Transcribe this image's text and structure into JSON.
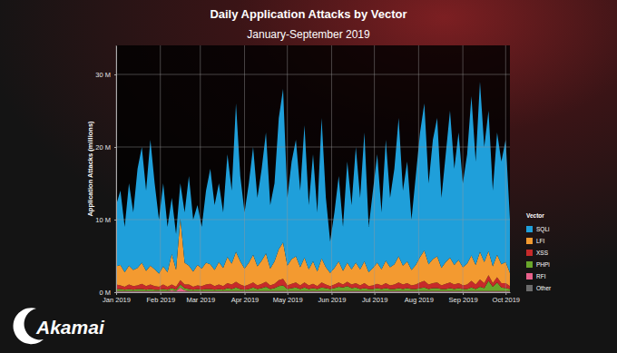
{
  "chart_data": {
    "type": "area",
    "title": "Daily Application Attacks by Vector",
    "subtitle": "January-September 2019",
    "y_label": "Application Attacks (millions)",
    "legend_title": "Vector",
    "annotations": [
      "Akamai"
    ],
    "stacked": true,
    "grid": true,
    "legend": "right",
    "x": [
      0,
      3,
      6,
      9,
      12,
      15,
      18,
      21,
      24,
      27,
      30,
      33,
      36,
      39,
      42,
      45,
      48,
      51,
      54,
      57,
      60,
      63,
      66,
      69,
      72,
      75,
      78,
      81,
      84,
      87,
      90,
      93,
      96,
      99,
      102,
      105,
      108,
      111,
      114,
      117,
      120,
      123,
      126,
      129,
      132,
      135,
      138,
      141,
      144,
      147,
      150,
      153,
      156,
      159,
      162,
      165,
      168,
      171,
      174,
      177,
      180,
      183,
      186,
      189,
      192,
      195,
      198,
      201,
      204,
      207,
      210,
      213,
      216,
      219,
      222,
      225,
      228,
      231,
      234,
      237,
      240,
      243,
      246,
      249,
      252,
      255,
      258,
      261,
      264,
      267,
      270,
      273,
      276
    ],
    "xlim": [
      0,
      276
    ],
    "xticks": [
      {
        "value": 0,
        "label": "Jan 2019"
      },
      {
        "value": 31,
        "label": "Feb 2019"
      },
      {
        "value": 59,
        "label": "Mar 2019"
      },
      {
        "value": 90,
        "label": "Apr 2019"
      },
      {
        "value": 120,
        "label": "May 2019"
      },
      {
        "value": 151,
        "label": "Jun 2019"
      },
      {
        "value": 181,
        "label": "Jul 2019"
      },
      {
        "value": 212,
        "label": "Aug 2019"
      },
      {
        "value": 243,
        "label": "Sep 2019"
      },
      {
        "value": 273,
        "label": "Oct 2019"
      }
    ],
    "ylim": [
      0,
      34
    ],
    "yticks": [
      {
        "value": 0,
        "label": "0 M"
      },
      {
        "value": 10,
        "label": "10 M"
      },
      {
        "value": 20,
        "label": "20 M"
      },
      {
        "value": 30,
        "label": "30 M"
      }
    ],
    "series": [
      {
        "name": "SQLi",
        "color": "#1f9fda",
        "values": [
          8.45,
          10.25,
          6.25,
          11.35,
          7.95,
          13.65,
          15.95,
          11.05,
          17.35,
          11.85,
          7.45,
          11.45,
          6.25,
          7.75,
          4.95,
          4.85,
          6.95,
          12.35,
          7.15,
          8.25,
          5.75,
          9.95,
          13.15,
          8.95,
          10.85,
          7.65,
          14.15,
          10.05,
          20.45,
          11.75,
          7.75,
          10.95,
          14.85,
          9.45,
          12.65,
          16.65,
          8.75,
          10.75,
          18.05,
          21.15,
          9.35,
          13.45,
          16.05,
          10.55,
          18.25,
          8.85,
          14.75,
          8.15,
          19.35,
          9.55,
          4.35,
          7.65,
          11.75,
          6.05,
          13.95,
          8.85,
          15.95,
          9.85,
          17.75,
          6.25,
          10.65,
          14.95,
          7.85,
          16.65,
          9.55,
          13.15,
          19.05,
          10.35,
          13.75,
          6.95,
          12.25,
          17.15,
          20.25,
          11.15,
          16.45,
          19.05,
          9.65,
          14.85,
          20.25,
          13.25,
          17.55,
          11.55,
          15.05,
          21.95,
          14.25,
          23.45,
          15.85,
          19.35,
          10.45,
          16.85,
          14.15,
          16.85,
          7.35
        ]
      },
      {
        "name": "LFI",
        "color": "#f39a30",
        "values": [
          2.5,
          2.8,
          2.0,
          2.6,
          2.2,
          2.4,
          2.9,
          2.1,
          2.6,
          2.3,
          1.8,
          2.5,
          2.0,
          4.2,
          2.3,
          8.5,
          3.0,
          2.6,
          2.1,
          2.8,
          2.4,
          3.0,
          2.7,
          2.2,
          3.1,
          2.5,
          3.6,
          2.9,
          4.1,
          3.2,
          2.4,
          3.0,
          3.8,
          2.6,
          3.2,
          3.9,
          2.3,
          3.1,
          4.3,
          5.0,
          2.7,
          3.4,
          3.6,
          2.5,
          3.4,
          2.2,
          3.1,
          2.0,
          3.3,
          2.4,
          1.8,
          2.3,
          2.9,
          1.9,
          2.6,
          2.1,
          2.8,
          2.2,
          3.0,
          1.9,
          2.4,
          2.9,
          2.2,
          3.1,
          2.5,
          2.8,
          3.6,
          2.6,
          3.0,
          2.1,
          2.7,
          3.5,
          4.2,
          2.8,
          3.3,
          3.6,
          2.4,
          3.0,
          3.4,
          2.7,
          3.2,
          2.5,
          2.9,
          3.5,
          2.7,
          3.8,
          2.9,
          3.3,
          2.3,
          3.1,
          2.6,
          2.9,
          1.8
        ]
      },
      {
        "name": "XSS",
        "color": "#c62a2a",
        "values": [
          0.6,
          0.5,
          0.4,
          0.6,
          0.5,
          0.5,
          0.7,
          0.5,
          0.6,
          0.5,
          0.4,
          0.6,
          0.4,
          0.5,
          0.4,
          0.6,
          0.5,
          0.6,
          0.4,
          0.5,
          0.5,
          0.6,
          0.7,
          0.5,
          0.6,
          0.5,
          0.7,
          0.6,
          0.8,
          0.6,
          0.5,
          0.6,
          0.7,
          0.5,
          0.6,
          0.7,
          0.5,
          0.6,
          0.8,
          0.9,
          0.5,
          0.6,
          0.7,
          0.5,
          0.7,
          0.5,
          0.6,
          0.4,
          0.7,
          0.5,
          0.4,
          0.5,
          0.6,
          0.4,
          0.6,
          0.5,
          0.6,
          0.5,
          0.7,
          0.4,
          0.5,
          0.6,
          0.5,
          0.7,
          0.5,
          0.6,
          0.8,
          0.6,
          0.7,
          0.5,
          0.6,
          0.8,
          0.9,
          0.6,
          0.7,
          0.8,
          0.5,
          0.7,
          0.8,
          0.6,
          0.7,
          0.5,
          0.6,
          0.9,
          0.6,
          1.0,
          0.7,
          0.8,
          0.5,
          0.7,
          0.6,
          0.7,
          0.4
        ]
      },
      {
        "name": "PHPi",
        "color": "#69a62b",
        "values": [
          0.3,
          0.3,
          0.2,
          0.3,
          0.2,
          0.3,
          0.3,
          0.2,
          0.3,
          0.2,
          0.2,
          0.3,
          0.2,
          0.3,
          0.2,
          0.4,
          0.3,
          0.3,
          0.2,
          0.3,
          0.2,
          0.3,
          0.3,
          0.2,
          0.3,
          0.2,
          0.4,
          0.3,
          0.5,
          0.3,
          0.2,
          0.3,
          0.5,
          0.3,
          0.4,
          0.6,
          0.3,
          0.4,
          0.7,
          0.8,
          0.3,
          0.4,
          0.5,
          0.3,
          0.5,
          0.3,
          0.4,
          0.3,
          0.5,
          0.4,
          0.3,
          0.4,
          0.6,
          0.5,
          0.7,
          0.4,
          0.5,
          0.3,
          0.4,
          0.3,
          0.3,
          0.4,
          0.3,
          0.4,
          0.3,
          0.3,
          0.4,
          0.3,
          0.4,
          0.3,
          0.3,
          0.4,
          0.5,
          0.3,
          0.4,
          0.4,
          0.3,
          0.3,
          0.4,
          0.3,
          0.4,
          0.3,
          0.3,
          0.5,
          0.3,
          0.6,
          0.4,
          1.4,
          0.6,
          1.2,
          0.5,
          0.4,
          0.3
        ]
      },
      {
        "name": "RFI",
        "color": "#e8608a",
        "values": [
          0.1,
          0.1,
          0.1,
          0.1,
          0.1,
          0.1,
          0.1,
          0.1,
          0.1,
          0.1,
          0.1,
          0.1,
          0.1,
          0.2,
          0.1,
          0.6,
          0.2,
          0.1,
          0.1,
          0.1,
          0.1,
          0.1,
          0.1,
          0.1,
          0.1,
          0.1,
          0.1,
          0.1,
          0.1,
          0.1,
          0.1,
          0.1,
          0.1,
          0.1,
          0.1,
          0.1,
          0.1,
          0.1,
          0.1,
          0.1,
          0.1,
          0.1,
          0.1,
          0.1,
          0.1,
          0.1,
          0.1,
          0.1,
          0.1,
          0.1,
          0.1,
          0.1,
          0.1,
          0.1,
          0.1,
          0.1,
          0.1,
          0.1,
          0.1,
          0.1,
          0.1,
          0.1,
          0.1,
          0.1,
          0.1,
          0.1,
          0.1,
          0.1,
          0.1,
          0.1,
          0.1,
          0.1,
          0.1,
          0.1,
          0.1,
          0.1,
          0.1,
          0.1,
          0.1,
          0.1,
          0.1,
          0.1,
          0.1,
          0.1,
          0.1,
          0.1,
          0.1,
          0.1,
          0.1,
          0.1,
          0.1,
          0.1,
          0.1
        ]
      },
      {
        "name": "Other",
        "color": "#6b6b6b",
        "values": [
          0.05,
          0.05,
          0.05,
          0.05,
          0.05,
          0.05,
          0.05,
          0.05,
          0.05,
          0.05,
          0.05,
          0.05,
          0.05,
          0.05,
          0.05,
          0.05,
          0.05,
          0.05,
          0.05,
          0.05,
          0.05,
          0.05,
          0.05,
          0.05,
          0.05,
          0.05,
          0.05,
          0.05,
          0.05,
          0.05,
          0.05,
          0.05,
          0.05,
          0.05,
          0.05,
          0.05,
          0.05,
          0.05,
          0.05,
          0.05,
          0.05,
          0.05,
          0.05,
          0.05,
          0.05,
          0.05,
          0.05,
          0.05,
          0.05,
          0.05,
          0.05,
          0.05,
          0.05,
          0.05,
          0.05,
          0.05,
          0.05,
          0.05,
          0.05,
          0.05,
          0.05,
          0.05,
          0.05,
          0.05,
          0.05,
          0.05,
          0.05,
          0.05,
          0.05,
          0.05,
          0.05,
          0.05,
          0.05,
          0.05,
          0.05,
          0.05,
          0.05,
          0.05,
          0.05,
          0.05,
          0.05,
          0.05,
          0.05,
          0.05,
          0.05,
          0.05,
          0.05,
          0.05,
          0.05,
          0.05,
          0.05,
          0.05,
          0.05
        ]
      }
    ]
  }
}
